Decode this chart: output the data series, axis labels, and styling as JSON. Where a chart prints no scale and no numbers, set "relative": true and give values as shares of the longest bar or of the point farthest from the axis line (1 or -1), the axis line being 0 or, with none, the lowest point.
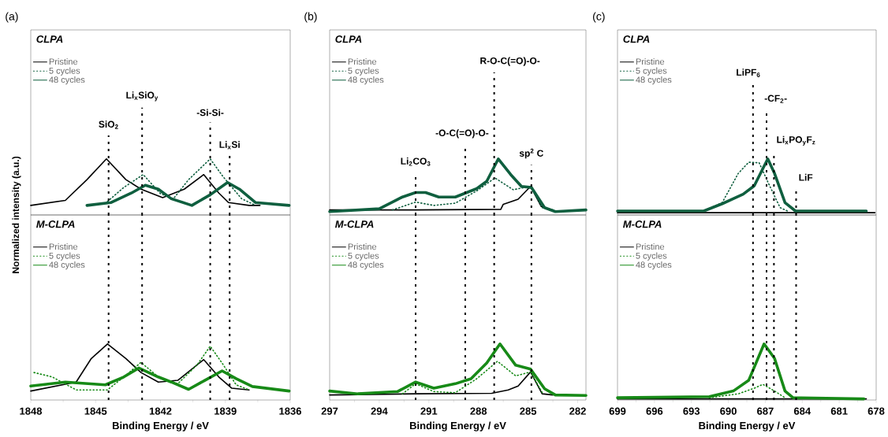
{
  "chart_data": [
    {
      "type": "line",
      "title": "(a)",
      "subtitle": "CLPA",
      "ylabel": "Normalized intensity (a.u.)",
      "relative": true,
      "xlim": [
        1848,
        1836
      ],
      "tick_labels": false,
      "legend": "top left",
      "series": [
        {
          "name": "Pristine",
          "color": "#000000",
          "line_style": "solid",
          "x": [
            1848,
            1846.4,
            1845.4,
            1844.5,
            1843.6,
            1842.9,
            1841.9,
            1840.9,
            1840.0,
            1839.3,
            1838.85,
            1837.9,
            1837.4
          ],
          "values": [
            0.17,
            0.26,
            0.63,
            1.0,
            0.63,
            0.46,
            0.31,
            0.46,
            0.72,
            0.39,
            0.22,
            0.17,
            0.17
          ]
        },
        {
          "name": "5 cycles",
          "color": "#0f5f3f",
          "line_style": "dotted",
          "x": [
            1844.45,
            1843.7,
            1842.8,
            1842.0,
            1841.4,
            1840.7,
            1839.7,
            1839.1,
            1838.25,
            1837.6
          ],
          "values": [
            0.24,
            0.49,
            0.72,
            0.38,
            0.29,
            0.63,
            1.0,
            0.68,
            0.29,
            0.17
          ]
        },
        {
          "name": "48 cycles",
          "color": "#0f5f3f",
          "line_style": "solid",
          "x": [
            1845.4,
            1844.3,
            1843.35,
            1842.7,
            1842.1,
            1841.5,
            1840.55,
            1839.7,
            1838.9,
            1838.35,
            1837.6,
            1836.05
          ],
          "values": [
            0.17,
            0.22,
            0.39,
            0.53,
            0.46,
            0.29,
            0.17,
            0.36,
            0.58,
            0.46,
            0.22,
            0.17
          ]
        }
      ],
      "ref_lines": [
        {
          "axis": "x",
          "value": 1844.4,
          "label": "SiO$_{2}$"
        },
        {
          "axis": "x",
          "value": 1842.85,
          "label": "Li$_{x}$SiO$_{y}$"
        },
        {
          "axis": "x",
          "value": 1839.7,
          "label": "-Si-Si-"
        },
        {
          "axis": "x",
          "value": 1838.8,
          "label": "Li$_{x}$Si"
        }
      ]
    },
    {
      "type": "line",
      "subtitle": "M-CLPA",
      "xlabel": "Binding Energy / eV",
      "relative": true,
      "xlim": [
        1848,
        1836
      ],
      "xticks": [
        1848,
        1845,
        1842,
        1839,
        1836
      ],
      "tick_labels": "x",
      "legend": "top left",
      "series": [
        {
          "name": "Pristine",
          "color": "#000000",
          "line_style": "solid",
          "x": [
            1848,
            1845.9,
            1845.2,
            1844.45,
            1843.6,
            1842.9,
            1842.1,
            1841.2,
            1840.0,
            1839.3,
            1838.7,
            1837.9
          ],
          "values": [
            0.16,
            0.32,
            0.74,
            1.0,
            0.74,
            0.49,
            0.32,
            0.35,
            0.72,
            0.41,
            0.21,
            0.18
          ]
        },
        {
          "name": "5 cycles",
          "color": "#178a17",
          "line_style": "dotted",
          "x": [
            1847.85,
            1847.0,
            1845.9,
            1844.45,
            1843.7,
            1842.9,
            1842.1,
            1841.2,
            1840.3,
            1839.7,
            1839.1,
            1838.5,
            1837.9
          ],
          "values": [
            0.49,
            0.41,
            0.18,
            0.18,
            0.41,
            0.67,
            0.41,
            0.29,
            0.63,
            0.96,
            0.63,
            0.27,
            0.18
          ]
        },
        {
          "name": "48 cycles",
          "color": "#178a17",
          "line_style": "solid",
          "x": [
            1848,
            1846.4,
            1844.55,
            1843.7,
            1843.0,
            1842.1,
            1841.5,
            1840.7,
            1839.95,
            1839.15,
            1838.5,
            1837.75,
            1836.05
          ],
          "values": [
            0.25,
            0.32,
            0.27,
            0.41,
            0.57,
            0.41,
            0.32,
            0.19,
            0.35,
            0.52,
            0.38,
            0.24,
            0.16
          ]
        }
      ],
      "ref_lines": [
        {
          "axis": "x",
          "value": 1844.4
        },
        {
          "axis": "x",
          "value": 1842.85
        },
        {
          "axis": "x",
          "value": 1839.7
        },
        {
          "axis": "x",
          "value": 1838.8
        }
      ]
    },
    {
      "type": "line",
      "title": "(b)",
      "subtitle": "CLPA",
      "relative": true,
      "xlim": [
        297,
        281.5
      ],
      "tick_labels": false,
      "legend": "top left",
      "series": [
        {
          "name": "Pristine",
          "color": "#000000",
          "line_style": "solid",
          "x": [
            297,
            291.8,
            286.65,
            286.5,
            285.6,
            284.85,
            284.2,
            283.7
          ],
          "values": [
            0.09,
            0.09,
            0.1,
            0.19,
            0.28,
            0.51,
            0.15,
            0.09
          ]
        },
        {
          "name": "5 cycles",
          "color": "#0f5f3f",
          "line_style": "dotted",
          "x": [
            293.2,
            291.8,
            290.7,
            289.4,
            288.1,
            287.0,
            285.9,
            284.85,
            284.15,
            283.5
          ],
          "values": [
            0.09,
            0.23,
            0.17,
            0.21,
            0.43,
            0.66,
            0.45,
            0.51,
            0.13,
            0.09
          ]
        },
        {
          "name": "48 cycles",
          "color": "#0f5f3f",
          "line_style": "solid",
          "x": [
            297,
            294.0,
            292.6,
            291.8,
            291.2,
            290.4,
            289.4,
            288.1,
            287.5,
            286.8,
            286.05,
            285.4,
            284.8,
            284.0,
            283.35,
            281.5
          ],
          "values": [
            0.06,
            0.11,
            0.32,
            0.4,
            0.4,
            0.32,
            0.32,
            0.47,
            0.6,
            1.0,
            0.72,
            0.51,
            0.49,
            0.13,
            0.06,
            0.09
          ]
        }
      ],
      "ref_lines": [
        {
          "axis": "x",
          "value": 291.8,
          "label": "Li$_{2}$CO$_{3}$"
        },
        {
          "axis": "x",
          "value": 288.8,
          "label": "-O-C(=O)-O-"
        },
        {
          "axis": "x",
          "value": 287.05,
          "label": "R-O-C(=O)-O-"
        },
        {
          "axis": "x",
          "value": 284.8,
          "label": "sp$^{2}$ C"
        }
      ]
    },
    {
      "type": "line",
      "subtitle": "M-CLPA",
      "xlabel": "Binding Energy / eV",
      "relative": true,
      "xlim": [
        297,
        281.5
      ],
      "xticks": [
        297,
        294,
        291,
        288,
        285,
        282
      ],
      "tick_labels": "x",
      "legend": "top left",
      "series": [
        {
          "name": "Pristine",
          "color": "#000000",
          "line_style": "solid",
          "x": [
            297,
            291.8,
            287.2,
            286.2,
            285.6,
            284.85,
            284.15,
            283.5
          ],
          "values": [
            0.09,
            0.11,
            0.12,
            0.18,
            0.25,
            0.5,
            0.11,
            0.09
          ]
        },
        {
          "name": "5 cycles",
          "color": "#178a17",
          "line_style": "dotted",
          "x": [
            292.6,
            291.8,
            290.7,
            289.4,
            288.1,
            286.85,
            285.75,
            284.85,
            284.1
          ],
          "values": [
            0.11,
            0.29,
            0.15,
            0.13,
            0.38,
            0.69,
            0.43,
            0.5,
            0.11
          ]
        },
        {
          "name": "48 cycles",
          "color": "#178a17",
          "line_style": "solid",
          "x": [
            297,
            295.3,
            292.9,
            291.8,
            290.7,
            289.4,
            288.45,
            287.5,
            286.7,
            285.75,
            284.85,
            284.0,
            283.35,
            281.5
          ],
          "values": [
            0.16,
            0.11,
            0.15,
            0.32,
            0.21,
            0.29,
            0.38,
            0.66,
            1.0,
            0.62,
            0.55,
            0.2,
            0.09,
            0.08
          ]
        }
      ],
      "ref_lines": [
        {
          "axis": "x",
          "value": 291.8
        },
        {
          "axis": "x",
          "value": 288.8
        },
        {
          "axis": "x",
          "value": 287.05
        },
        {
          "axis": "x",
          "value": 284.8
        }
      ]
    },
    {
      "type": "line",
      "title": "(c)",
      "subtitle": "CLPA",
      "relative": true,
      "xlim": [
        699,
        678
      ],
      "tick_labels": false,
      "legend": "top left",
      "series": [
        {
          "name": "Pristine",
          "color": "#000000",
          "line_style": "solid",
          "x": [
            699,
            690,
            686,
            682,
            678.1
          ],
          "values": [
            0.04,
            0.04,
            0.04,
            0.04,
            0.04
          ]
        },
        {
          "name": "5 cycles",
          "color": "#0f5f3f",
          "line_style": "dotted",
          "x": [
            692.0,
            690.5,
            689.2,
            688.35,
            687.5,
            686.65,
            685.8,
            685.2
          ],
          "values": [
            0.07,
            0.22,
            0.74,
            0.94,
            0.93,
            0.52,
            0.13,
            0.07
          ]
        },
        {
          "name": "48 cycles",
          "color": "#0f5f3f",
          "line_style": "solid",
          "x": [
            699,
            692.0,
            690.5,
            688.8,
            687.9,
            686.8,
            686.25,
            685.4,
            684.55,
            678.8
          ],
          "values": [
            0.07,
            0.07,
            0.2,
            0.37,
            0.52,
            1.0,
            0.74,
            0.22,
            0.07,
            0.07
          ]
        }
      ],
      "ref_lines": [
        {
          "axis": "x",
          "value": 688.0,
          "label": "LiPF$_{6}$"
        },
        {
          "axis": "x",
          "value": 686.9,
          "label": "-CF$_{2}$-"
        },
        {
          "axis": "x",
          "value": 686.3,
          "label": "Li$_{x}$PO$_{y}$F$_{z}$"
        },
        {
          "axis": "x",
          "value": 684.5,
          "label": "LiF"
        }
      ]
    },
    {
      "type": "line",
      "subtitle": "M-CLPA",
      "xlabel": "Binding Energy / eV",
      "relative": true,
      "xlim": [
        699,
        678
      ],
      "xticks": [
        699,
        696,
        693,
        690,
        687,
        684,
        681,
        678
      ],
      "tick_labels": "x",
      "legend": "top left",
      "series": [
        {
          "name": "Pristine",
          "color": "#000000",
          "line_style": "solid",
          "x": [
            699,
            690,
            684,
            678.8
          ],
          "values": [
            0.02,
            0.02,
            0.02,
            0.02
          ]
        },
        {
          "name": "5 cycles",
          "color": "#178a17",
          "line_style": "dotted",
          "x": [
            691.55,
            689.2,
            687.9,
            687.2,
            686.25,
            685.4
          ],
          "values": [
            0.04,
            0.11,
            0.21,
            0.28,
            0.16,
            0.04
          ]
        },
        {
          "name": "48 cycles",
          "color": "#178a17",
          "line_style": "solid",
          "x": [
            699,
            691.55,
            689.6,
            688.35,
            687.1,
            686.25,
            685.4,
            684.75,
            679.0
          ],
          "values": [
            0.04,
            0.06,
            0.16,
            0.35,
            1.0,
            0.74,
            0.16,
            0.04,
            0.02
          ]
        }
      ],
      "ref_lines": [
        {
          "axis": "x",
          "value": 688.0
        },
        {
          "axis": "x",
          "value": 686.9
        },
        {
          "axis": "x",
          "value": 686.3
        },
        {
          "axis": "x",
          "value": 684.5
        }
      ]
    }
  ]
}
